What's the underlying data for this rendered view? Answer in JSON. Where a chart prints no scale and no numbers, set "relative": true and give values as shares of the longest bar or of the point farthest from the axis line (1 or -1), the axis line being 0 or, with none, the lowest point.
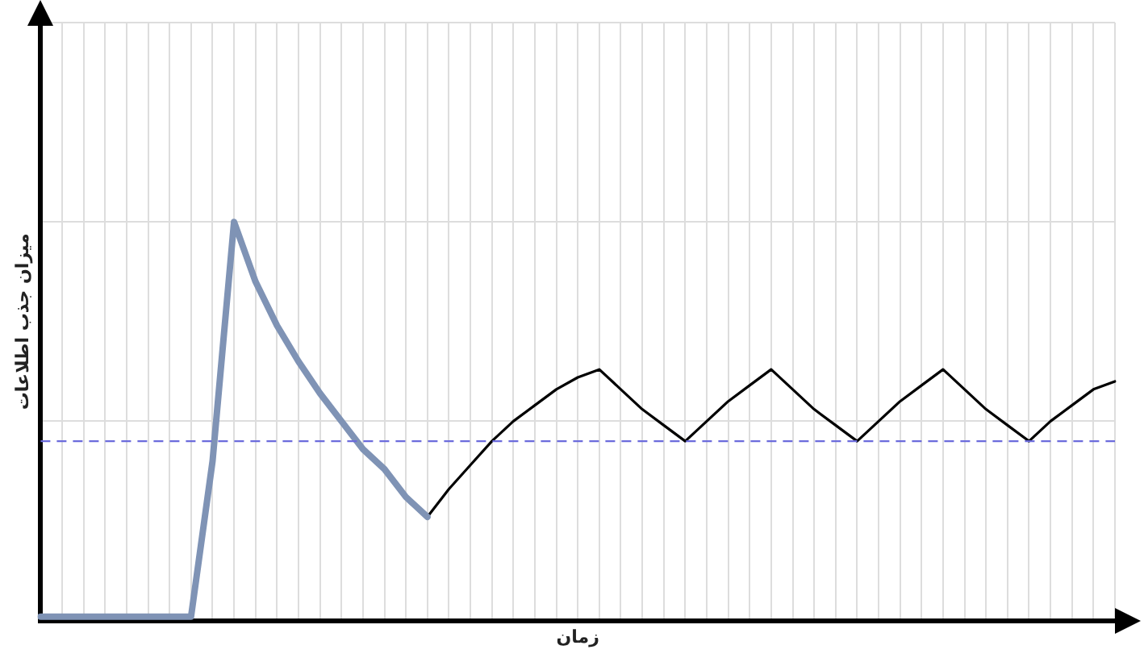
{
  "chart_data": {
    "type": "line",
    "relative": true,
    "xlabel": "زمان",
    "ylabel": "میزان جذب اطلاعات",
    "categories": [
      null,
      null,
      null,
      null,
      null,
      null,
      null,
      null,
      null,
      null,
      null,
      null,
      null,
      null,
      null,
      null,
      null,
      null,
      null,
      null,
      null,
      null,
      null,
      null,
      null,
      null,
      null,
      null,
      null,
      null,
      null,
      null,
      null,
      null,
      null,
      null,
      null,
      null,
      null,
      null,
      null,
      null,
      null,
      null,
      null,
      null,
      null,
      null,
      null,
      null,
      null
    ],
    "series": [
      {
        "color": "#7f93b5",
        "values": [
          0.01,
          0.01,
          0.01,
          0.01,
          0.01,
          0.01,
          0.01,
          0.01,
          0.4,
          1,
          0.85,
          0.74,
          0.65,
          0.57,
          0.5,
          0.43,
          0.38,
          0.31,
          0.26,
          null,
          null,
          null,
          null,
          null,
          null,
          null,
          null,
          null,
          null,
          null,
          null,
          null,
          null,
          null,
          null,
          null,
          null,
          null,
          null,
          null,
          null,
          null,
          null,
          null,
          null,
          null,
          null,
          null,
          null,
          null,
          null
        ]
      },
      {
        "color": "#000000",
        "values": [
          null,
          null,
          null,
          null,
          null,
          null,
          null,
          null,
          null,
          null,
          null,
          null,
          null,
          null,
          null,
          null,
          null,
          null,
          0.26,
          0.33,
          0.39,
          0.45,
          0.5,
          0.54,
          0.58,
          0.61,
          0.63,
          0.58,
          0.53,
          0.49,
          0.45,
          0.5,
          0.55,
          0.59,
          0.63,
          0.58,
          0.53,
          0.49,
          0.45,
          0.5,
          0.55,
          0.59,
          0.63,
          0.58,
          0.53,
          0.49,
          0.45,
          0.5,
          0.54,
          0.58,
          0.6
        ]
      }
    ],
    "ref_lines": [
      {
        "axis": "y",
        "value": 0.45,
        "color": "#6b6bdc",
        "line_style": "dashed"
      }
    ],
    "grid": true,
    "legend": false,
    "marker": "none",
    "line_style": "solid",
    "tick_labels": false
  }
}
